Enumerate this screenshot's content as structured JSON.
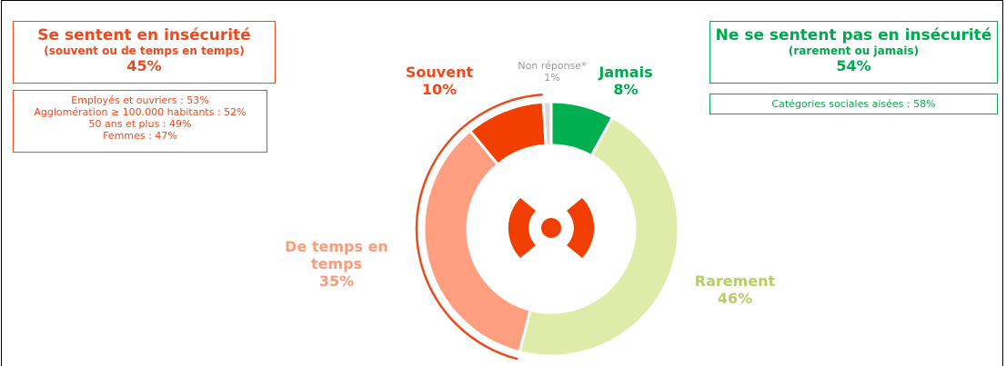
{
  "chart_data": {
    "type": "donut",
    "categories": [
      "Jamais",
      "Rarement",
      "De temps en temps",
      "Souvent",
      "Non réponse*"
    ],
    "values": [
      8,
      46,
      35,
      10,
      1
    ],
    "value_labels": [
      "8%",
      "46%",
      "35%",
      "10%",
      "1%"
    ],
    "colors": [
      "#00b050",
      "#dfeba9",
      "#ff9f80",
      "#f23e00",
      "#d9d9d9"
    ],
    "label_colors": [
      "#00a84f",
      "#b5cf66",
      "#ff9a78",
      "#ea4a1e",
      "#999999"
    ]
  },
  "panels": {
    "left": {
      "title": "Se sentent en insécurité",
      "subtitle": "(souvent ou de temps en temps)",
      "total": "45%",
      "details": [
        "Employés et ouvriers : 53%",
        "Agglomération ≥ 100.000 habitants : 52%",
        "50 ans et plus : 49%",
        "Femmes : 47%"
      ]
    },
    "right": {
      "title": "Ne se sentent pas en insécurité",
      "subtitle": "(rarement ou jamais)",
      "total": "54%",
      "details": [
        "Catégories sociales aisées : 58%"
      ]
    }
  }
}
